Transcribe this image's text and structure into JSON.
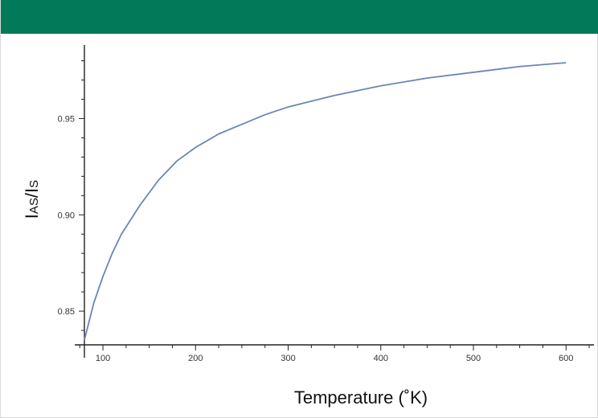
{
  "colors": {
    "banner": "#027a5a",
    "axis": "#222222",
    "curve": "#6b86b5",
    "text": "#333333"
  },
  "chart_data": {
    "type": "line",
    "title": "",
    "xlabel": "Temperature (˚K)",
    "ylabel_main": "I",
    "ylabel_sub1": "AS",
    "ylabel_mid": "/I",
    "ylabel_sub2": "S",
    "xlim": [
      80,
      605
    ],
    "ylim": [
      0.8325,
      0.9865
    ],
    "x_ticks": [
      100,
      200,
      300,
      400,
      500,
      600
    ],
    "x_tick_labels": [
      "100",
      "200",
      "300",
      "400",
      "500",
      "600"
    ],
    "y_ticks": [
      0.85,
      0.9,
      0.95
    ],
    "y_tick_labels": [
      "0.85",
      "0.90",
      "0.95"
    ],
    "grid": false,
    "series": [
      {
        "x": [
          80,
          90,
          100,
          110,
          120,
          140,
          160,
          180,
          200,
          225,
          250,
          275,
          300,
          325,
          350,
          375,
          400,
          450,
          500,
          550,
          600
        ],
        "y": [
          0.835,
          0.854,
          0.868,
          0.88,
          0.89,
          0.905,
          0.918,
          0.928,
          0.935,
          0.942,
          0.947,
          0.952,
          0.956,
          0.959,
          0.962,
          0.9645,
          0.967,
          0.971,
          0.974,
          0.977,
          0.979
        ]
      }
    ]
  }
}
